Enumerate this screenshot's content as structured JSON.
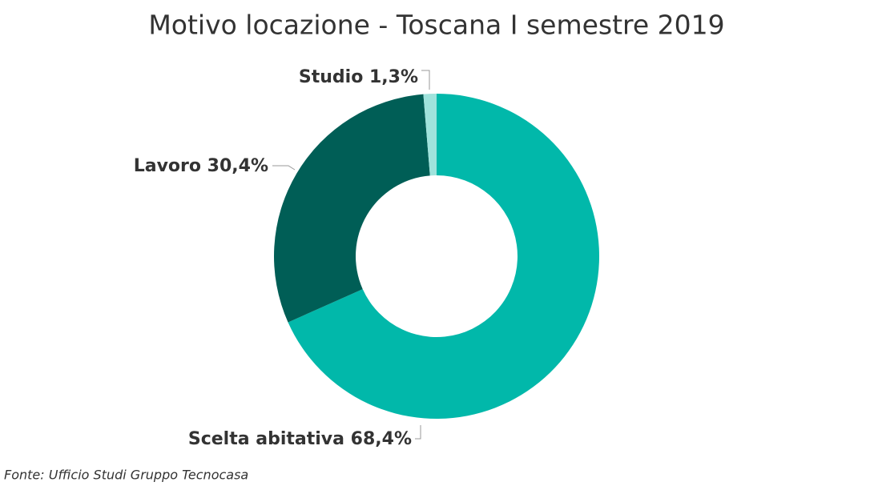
{
  "chart_data": {
    "type": "donut",
    "title": "Motivo locazione - Toscana I semestre 2019",
    "categories": [
      "Scelta abitativa",
      "Lavoro",
      "Studio"
    ],
    "values": [
      68.4,
      30.4,
      1.3
    ],
    "value_labels": [
      "68,4%",
      "30,4%",
      "1,3%"
    ],
    "colors": [
      "#01b8aa",
      "#005e56",
      "#9fe3dc"
    ],
    "source": "Fonte: Ufficio Studi Gruppo Tecnocasa"
  }
}
